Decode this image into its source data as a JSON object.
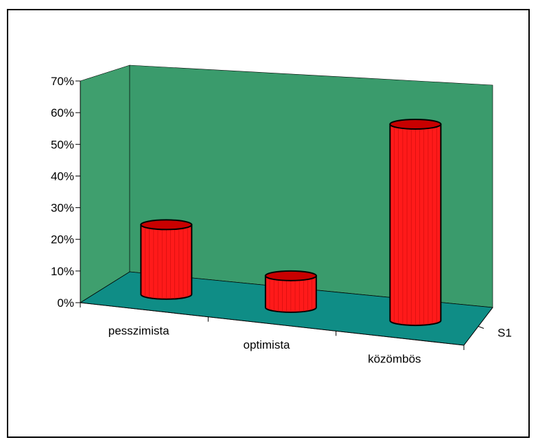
{
  "chart_data": {
    "type": "bar",
    "style": "3d-cylinder",
    "categories": [
      "pesszimista",
      "optimista",
      "közömbös"
    ],
    "series": [
      {
        "name": "S1",
        "values": [
          0.22,
          0.1,
          0.62
        ]
      }
    ],
    "yticks": [
      "0%",
      "10%",
      "20%",
      "30%",
      "40%",
      "50%",
      "60%",
      "70%"
    ],
    "ylim": [
      0,
      0.7
    ],
    "title": "",
    "xlabel": "",
    "ylabel": "",
    "grid": false,
    "colors": {
      "back_wall": "#3a9b6c",
      "side_wall": "#3f9f6e",
      "floor": "#0f8d86",
      "bar_front": "#ff1a1a",
      "bar_top": "#c80000",
      "bar_edge": "#000000",
      "bar_stripe": "#a00000"
    }
  }
}
